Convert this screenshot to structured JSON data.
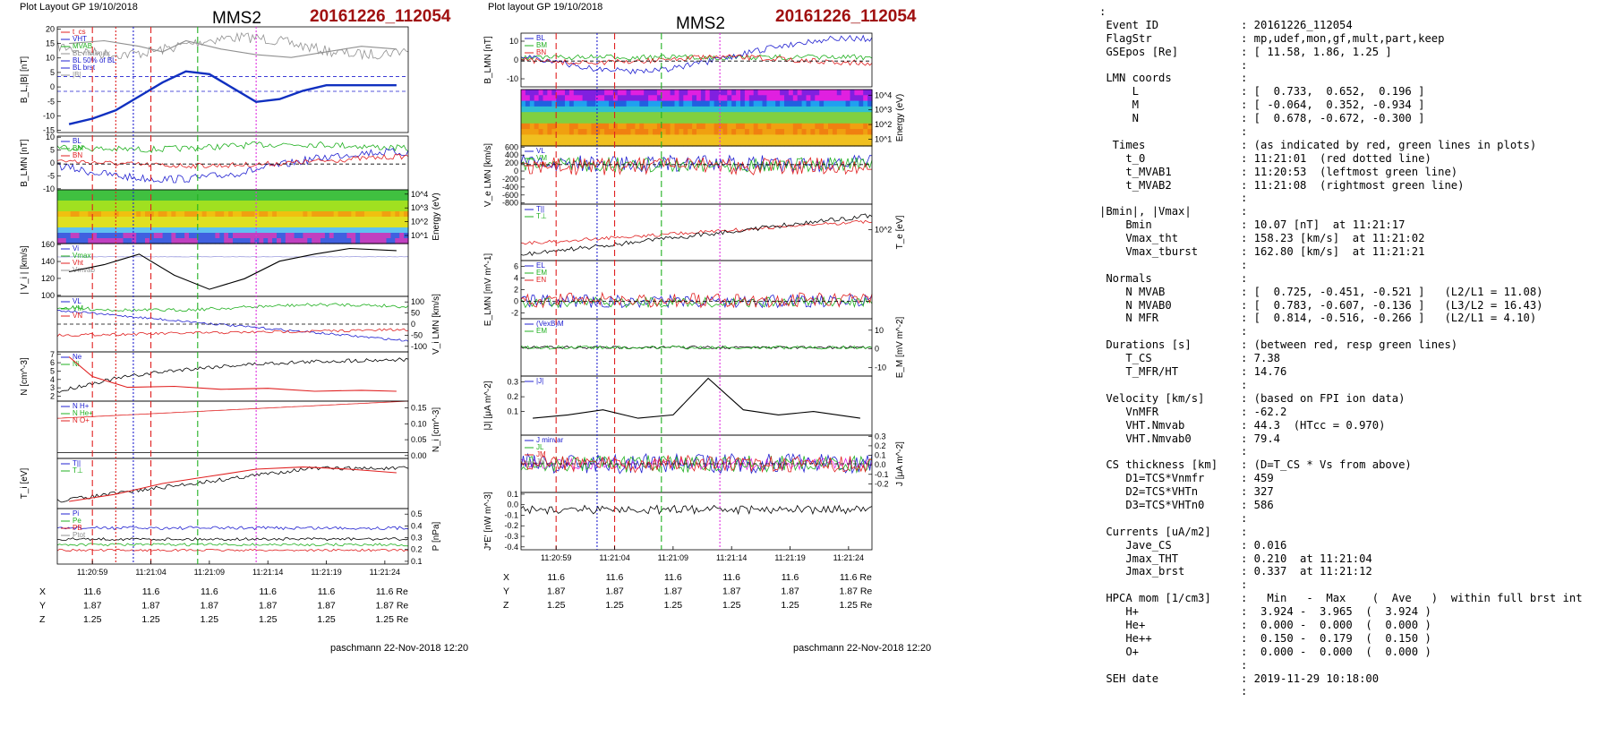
{
  "left_plot": {
    "header": "Plot Layout GP 19/10/2018",
    "title": "MMS2",
    "event": "20161226_112054",
    "footer": "paschmann 22-Nov-2018 12:20",
    "xticks": [
      "11:20:59",
      "11:21:04",
      "11:21:09",
      "11:21:14",
      "11:21:19",
      "11:21:24"
    ],
    "panels": [
      {
        "id": "BL",
        "ylabel": "B_L,|B| [nT]",
        "side": "left",
        "yticks": [
          "20",
          "15",
          "10",
          "5",
          "0",
          "-5",
          "-10",
          "-15"
        ],
        "legend": [
          "t_cs",
          "VHT",
          "MVAB",
          "BL min/max",
          "BL 50% of BL",
          "BL brst",
          "|B|"
        ]
      },
      {
        "id": "BLMN",
        "ylabel": "B_LMN [nT]",
        "side": "left",
        "yticks": [
          "10",
          "5",
          "0",
          "-5",
          "-10"
        ],
        "legend": [
          "BL",
          "BM",
          "BN"
        ]
      },
      {
        "id": "spec",
        "ylabel": "Energy (eV)",
        "side": "right",
        "yticks": [
          "10^4",
          "10^3",
          "10^2",
          "10^1"
        ]
      },
      {
        "id": "Vi",
        "ylabel": "| V_i | [km/s]",
        "side": "left",
        "yticks": [
          "160",
          "140",
          "120",
          "100"
        ],
        "legend": [
          "Vi",
          "Vmax",
          "Vht",
          "Vmvab"
        ]
      },
      {
        "id": "ViLMN",
        "ylabel": "V_i LMN [km/s]",
        "side": "right",
        "yticks": [
          "100",
          "50",
          "0",
          "-50",
          "-100"
        ],
        "legend": [
          "VL",
          "VM",
          "VN"
        ]
      },
      {
        "id": "N",
        "ylabel": "N [cm^-3]",
        "side": "left",
        "yticks": [
          "7",
          "6",
          "5",
          "4",
          "3",
          "2"
        ],
        "legend": [
          "Ne",
          "Ni"
        ]
      },
      {
        "id": "Ni",
        "ylabel": "N_i [cm^-3]",
        "side": "right",
        "yticks": [
          "0.15",
          "0.10",
          "0.05",
          "0.00"
        ],
        "legend": [
          "N H+",
          "N He+",
          "N O+"
        ]
      },
      {
        "id": "Ti",
        "ylabel": "T_i [eV]",
        "side": "left",
        "yticks": [],
        "legend": [
          "T||",
          "T⊥"
        ]
      },
      {
        "id": "P",
        "ylabel": "P [nPa]",
        "side": "right",
        "yticks": [
          "0.5",
          "0.4",
          "0.3",
          "0.2",
          "0.1"
        ],
        "legend": [
          "Pi",
          "Pe",
          "PB",
          "Ptot"
        ]
      }
    ],
    "coords": {
      "X": {
        "label": "X",
        "values": [
          "11.6",
          "11.6",
          "11.6",
          "11.6",
          "11.6",
          "11.6 Re"
        ]
      },
      "Y": {
        "label": "Y",
        "values": [
          "1.87",
          "1.87",
          "1.87",
          "1.87",
          "1.87",
          "1.87 Re"
        ]
      },
      "Z": {
        "label": "Z",
        "values": [
          "1.25",
          "1.25",
          "1.25",
          "1.25",
          "1.25",
          "1.25 Re"
        ]
      }
    }
  },
  "right_plot": {
    "header": "Plot layout GP 19/10/2018",
    "title": "MMS2",
    "event": "20161226_112054",
    "footer": "paschmann 22-Nov-2018 12:20",
    "xticks": [
      "11:20:59",
      "11:21:04",
      "11:21:09",
      "11:21:14",
      "11:21:19",
      "11:21:24"
    ],
    "panels": [
      {
        "id": "BLMN",
        "ylabel": "B_LMN [nT]",
        "side": "left",
        "yticks": [
          "10",
          "0",
          "-10"
        ],
        "legend": [
          "BL",
          "BM",
          "BN"
        ]
      },
      {
        "id": "spec",
        "ylabel": "Energy (eV)",
        "side": "right",
        "yticks": [
          "10^4",
          "10^3",
          "10^2",
          "10^1"
        ]
      },
      {
        "id": "VeLMN",
        "ylabel": "V_e LMN [km/s]",
        "side": "left",
        "yticks": [
          "600",
          "400",
          "200",
          "0",
          "-200",
          "-400",
          "-600",
          "-800"
        ],
        "legend": [
          "VL",
          "VM",
          "VN"
        ]
      },
      {
        "id": "Te",
        "ylabel": "T_e [eV]",
        "side": "right",
        "yticks": [
          "10^2"
        ],
        "legend": [
          "T||",
          "T⊥"
        ]
      },
      {
        "id": "ELMN",
        "ylabel": "E_LMN [mV m^-1]",
        "side": "left",
        "yticks": [
          "6",
          "4",
          "2",
          "0",
          "-2"
        ],
        "legend": [
          "EL",
          "EM",
          "EN"
        ]
      },
      {
        "id": "EM",
        "ylabel": "E_M [mV m^-2]",
        "side": "right",
        "yticks": [
          "10",
          "0",
          "-10"
        ],
        "legend": [
          "(VexB)M",
          "EM"
        ]
      },
      {
        "id": "J",
        "ylabel": "|J| [μA m^-2]",
        "side": "left",
        "yticks": [
          "0.3",
          "0.2",
          "0.1"
        ],
        "legend": [
          "|J|"
        ]
      },
      {
        "id": "JLMN",
        "ylabel": "J [μA m^-2]",
        "side": "right",
        "yticks": [
          "0.3",
          "0.2",
          "0.1",
          "0.0",
          "-0.1",
          "-0.2"
        ],
        "legend": [
          "J minvar",
          "JL",
          "JM",
          "JN"
        ]
      },
      {
        "id": "JE",
        "ylabel": "J*E' [nW m^-3]",
        "side": "left",
        "yticks": [
          "0.1",
          "0.0",
          "-0.1",
          "-0.2",
          "-0.3",
          "-0.4"
        ]
      }
    ],
    "coords": {
      "X": {
        "label": "X",
        "values": [
          "11.6",
          "11.6",
          "11.6",
          "11.6",
          "11.6",
          "11.6 Re"
        ]
      },
      "Y": {
        "label": "Y",
        "values": [
          "1.87",
          "1.87",
          "1.87",
          "1.87",
          "1.87",
          "1.87 Re"
        ]
      },
      "Z": {
        "label": "Z",
        "values": [
          "1.25",
          "1.25",
          "1.25",
          "1.25",
          "1.25",
          "1.25 Re"
        ]
      }
    }
  },
  "info_lines": [
    {
      "l": ":",
      "v": ""
    },
    {
      "l": " Event ID",
      "v": ": 20161226_112054"
    },
    {
      "l": " FlagStr",
      "v": ": mp,udef,mon,gf,mult,part,keep"
    },
    {
      "l": " GSEpos [Re]",
      "v": ": [ 11.58, 1.86, 1.25 ]"
    },
    {
      "l": "",
      "v": ":"
    },
    {
      "l": " LMN coords",
      "v": ":"
    },
    {
      "l": "     L",
      "v": ": [  0.733,  0.652,  0.196 ]"
    },
    {
      "l": "     M",
      "v": ": [ -0.064,  0.352, -0.934 ]"
    },
    {
      "l": "     N",
      "v": ": [  0.678, -0.672, -0.300 ]"
    },
    {
      "l": "",
      "v": ":"
    },
    {
      "l": "  Times",
      "v": ": (as indicated by red, green lines in plots)"
    },
    {
      "l": "    t_0",
      "v": ": 11:21:01  (red dotted line)"
    },
    {
      "l": "    t_MVAB1",
      "v": ": 11:20:53  (leftmost green line)"
    },
    {
      "l": "    t_MVAB2",
      "v": ": 11:21:08  (rightmost green line)"
    },
    {
      "l": "",
      "v": ":"
    },
    {
      "l": "|Bmin|, |Vmax|",
      "v": ":"
    },
    {
      "l": "    Bmin",
      "v": ": 10.07 [nT]  at 11:21:17"
    },
    {
      "l": "    Vmax_tht",
      "v": ": 158.23 [km/s]  at 11:21:02"
    },
    {
      "l": "    Vmax_tburst",
      "v": ": 162.80 [km/s]  at 11:21:21"
    },
    {
      "l": "",
      "v": ":"
    },
    {
      "l": " Normals",
      "v": ":"
    },
    {
      "l": "    N MVAB",
      "v": ": [  0.725, -0.451, -0.521 ]   (L2/L1 = 11.08)"
    },
    {
      "l": "    N MVAB0",
      "v": ": [  0.783, -0.607, -0.136 ]   (L3/L2 = 16.43)"
    },
    {
      "l": "    N MFR",
      "v": ": [  0.814, -0.516, -0.266 ]   (L2/L1 = 4.10)"
    },
    {
      "l": "",
      "v": ":"
    },
    {
      "l": " Durations [s]",
      "v": ": (between red, resp green lines)"
    },
    {
      "l": "    T_CS",
      "v": ": 7.38"
    },
    {
      "l": "    T_MFR/HT",
      "v": ": 14.76"
    },
    {
      "l": "",
      "v": ":"
    },
    {
      "l": " Velocity [km/s]",
      "v": ": (based on FPI ion data)"
    },
    {
      "l": "    VnMFR",
      "v": ": -62.2"
    },
    {
      "l": "    VHT.Nmvab",
      "v": ": 44.3  (HTcc = 0.970)"
    },
    {
      "l": "    VHT.Nmvab0",
      "v": ": 79.4"
    },
    {
      "l": "",
      "v": ":"
    },
    {
      "l": " CS thickness [km]",
      "v": ": (D=T_CS * Vs from above)"
    },
    {
      "l": "    D1=TCS*Vnmfr",
      "v": ": 459"
    },
    {
      "l": "    D2=TCS*VHTn",
      "v": ": 327"
    },
    {
      "l": "    D3=TCS*VHTn0",
      "v": ": 586"
    },
    {
      "l": "",
      "v": ":"
    },
    {
      "l": " Currents [uA/m2]",
      "v": ":"
    },
    {
      "l": "    Jave_CS",
      "v": ": 0.016"
    },
    {
      "l": "    Jmax_THT",
      "v": ": 0.210  at 11:21:04"
    },
    {
      "l": "    Jmax_brst",
      "v": ": 0.337  at 11:21:12"
    },
    {
      "l": "",
      "v": ":"
    },
    {
      "l": " HPCA mom [1/cm3]",
      "v": ":   Min   -  Max    (  Ave   )  within full brst int"
    },
    {
      "l": "    H+",
      "v": ":  3.924 -  3.965  (  3.924 )"
    },
    {
      "l": "    He+",
      "v": ":  0.000 -  0.000  (  0.000 )"
    },
    {
      "l": "    He++",
      "v": ":  0.150 -  0.179  (  0.150 )"
    },
    {
      "l": "    O+",
      "v": ":  0.000 -  0.000  (  0.000 )"
    },
    {
      "l": "",
      "v": ":"
    },
    {
      "l": " SEH date",
      "v": ": 2019-11-29 10:18:00"
    },
    {
      "l": "",
      "v": ":"
    }
  ],
  "chart_data": [
    {
      "type": "line",
      "title": "MMS2",
      "subtitle": "20161226_112054",
      "x_axis": {
        "type": "time",
        "ticks": [
          "11:20:59",
          "11:21:04",
          "11:21:09",
          "11:21:14",
          "11:21:19",
          "11:21:24"
        ],
        "range": [
          "11:20:56",
          "11:21:26"
        ]
      },
      "markers": [
        {
          "time": "11:20:59",
          "color": "#e02020",
          "style": "dashed"
        },
        {
          "time": "11:21:01",
          "color": "#e02020",
          "style": "dotted"
        },
        {
          "time": "11:21:04",
          "color": "#e02020",
          "style": "dashed"
        },
        {
          "time": "11:21:02.5",
          "color": "#2020d0",
          "style": "dotted"
        },
        {
          "time": "11:21:08",
          "color": "#20b020",
          "style": "dashed"
        },
        {
          "time": "11:21:13",
          "color": "#e030e0",
          "style": "dotted"
        }
      ],
      "series": [
        {
          "panel": "BL",
          "name": "|B|",
          "color": "#909090",
          "x": [
            "11:20:57",
            "11:21:00",
            "11:21:03",
            "11:21:05",
            "11:21:07",
            "11:21:10",
            "11:21:13",
            "11:21:16",
            "11:21:19",
            "11:21:22",
            "11:21:25"
          ],
          "y": [
            15,
            16,
            14,
            12,
            16,
            13,
            11,
            10,
            12,
            14,
            13
          ]
        },
        {
          "panel": "BL",
          "name": "BL",
          "color": "#1030c0",
          "x": [
            "11:20:57",
            "11:20:59",
            "11:21:01",
            "11:21:03",
            "11:21:05",
            "11:21:07",
            "11:21:09",
            "11:21:11",
            "11:21:13",
            "11:21:15",
            "11:21:17",
            "11:21:19",
            "11:21:22",
            "11:21:25"
          ],
          "y": [
            -14,
            -12,
            -9,
            -4,
            1,
            5,
            4,
            -1,
            -6,
            -5,
            -2,
            0,
            0,
            0
          ]
        },
        {
          "panel": "Vi",
          "name": "|Vi|",
          "color": "#000000",
          "x": [
            "11:20:57",
            "11:21:00",
            "11:21:03",
            "11:21:06",
            "11:21:09",
            "11:21:12",
            "11:21:15",
            "11:21:18",
            "11:21:21",
            "11:21:25"
          ],
          "y": [
            125,
            135,
            150,
            120,
            100,
            115,
            140,
            150,
            158,
            155
          ]
        },
        {
          "panel": "N",
          "name": "Ne",
          "color": "#e02020",
          "x": [
            "11:20:57",
            "11:20:59",
            "11:21:02",
            "11:21:06",
            "11:21:10",
            "11:21:14",
            "11:21:18",
            "11:21:22",
            "11:21:25"
          ],
          "y": [
            6.5,
            4.5,
            3.4,
            3.5,
            3.2,
            3.3,
            3.0,
            3.1,
            3.0
          ]
        },
        {
          "panel": "Ti",
          "name": "T||",
          "color": "#e02020",
          "x": [
            "11:20:57",
            "11:21:01",
            "11:21:05",
            "11:21:09",
            "11:21:13",
            "11:21:17",
            "11:21:21",
            "11:21:25"
          ],
          "y": [
            10,
            20,
            35,
            45,
            55,
            58,
            55,
            50
          ]
        }
      ]
    },
    {
      "type": "line",
      "title": "MMS2",
      "subtitle": "20161226_112054",
      "x_axis": {
        "type": "time",
        "ticks": [
          "11:20:59",
          "11:21:04",
          "11:21:09",
          "11:21:14",
          "11:21:19",
          "11:21:24"
        ],
        "range": [
          "11:20:56",
          "11:21:26"
        ]
      },
      "markers": [
        {
          "time": "11:20:59",
          "color": "#e02020",
          "style": "dashed"
        },
        {
          "time": "11:21:04",
          "color": "#e02020",
          "style": "dashed"
        },
        {
          "time": "11:21:02.5",
          "color": "#2020d0",
          "style": "dotted"
        },
        {
          "time": "11:21:08",
          "color": "#20b020",
          "style": "dashed"
        },
        {
          "time": "11:21:13",
          "color": "#e030e0",
          "style": "dotted"
        }
      ],
      "series": [
        {
          "panel": "J",
          "name": "|J|",
          "color": "#000000",
          "x": [
            "11:20:57",
            "11:21:00",
            "11:21:03",
            "11:21:06",
            "11:21:09",
            "11:21:12",
            "11:21:15",
            "11:21:18",
            "11:21:21",
            "11:21:25"
          ],
          "y": [
            0.1,
            0.12,
            0.15,
            0.1,
            0.12,
            0.337,
            0.15,
            0.12,
            0.14,
            0.1
          ]
        }
      ]
    }
  ]
}
